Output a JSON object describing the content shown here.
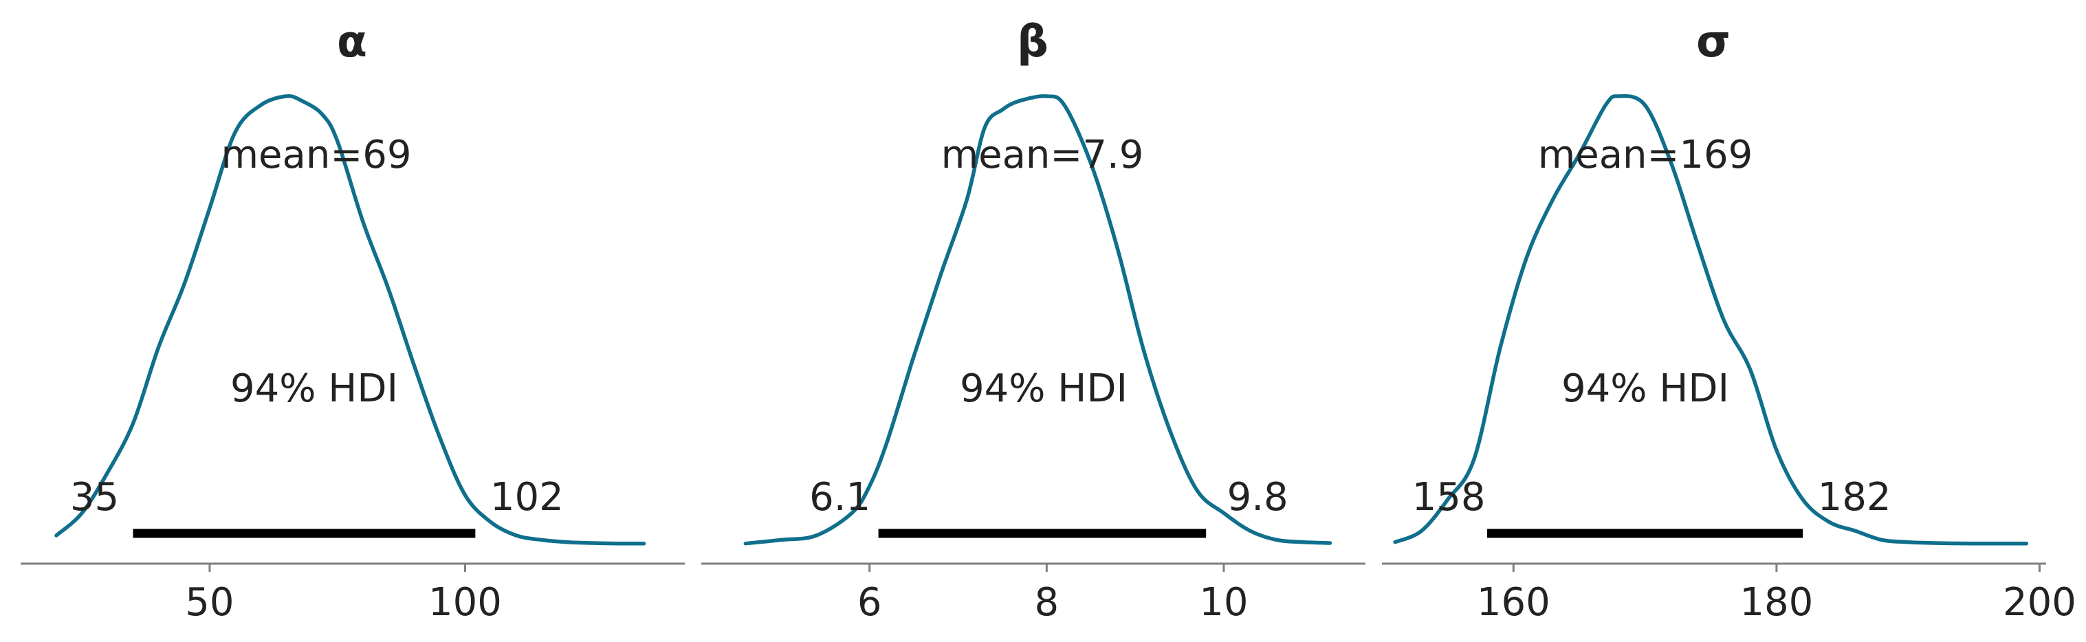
{
  "figure": {
    "curve_color": "#0f6f8c",
    "hdi_label": "94% HDI"
  },
  "chart_data": [
    {
      "type": "line",
      "title": "α",
      "mean_label": "mean=69",
      "hdi_low_label": "35",
      "hdi_high_label": "102",
      "hdi": [
        35,
        102
      ],
      "xlim": [
        13,
        143
      ],
      "ticks": [
        50,
        100
      ],
      "tick_labels": [
        "50",
        "100"
      ],
      "x": [
        20,
        25,
        30,
        35,
        40,
        45,
        50,
        55,
        60,
        65,
        68,
        72,
        75,
        80,
        85,
        90,
        95,
        100,
        105,
        110,
        115,
        120,
        125,
        130,
        135
      ],
      "density": [
        0.02,
        0.07,
        0.16,
        0.27,
        0.44,
        0.58,
        0.75,
        0.92,
        0.98,
        1.0,
        0.99,
        0.96,
        0.9,
        0.72,
        0.57,
        0.4,
        0.24,
        0.11,
        0.05,
        0.02,
        0.01,
        0.005,
        0.003,
        0.002,
        0.002
      ]
    },
    {
      "type": "line",
      "title": "β",
      "mean_label": "mean=7.9",
      "hdi_low_label": "6.1",
      "hdi_high_label": "9.8",
      "hdi": [
        6.1,
        9.8
      ],
      "xlim": [
        4.1,
        11.6
      ],
      "ticks": [
        6,
        8,
        10
      ],
      "tick_labels": [
        "6",
        "8",
        "10"
      ],
      "x": [
        4.6,
        5.0,
        5.4,
        5.8,
        6.0,
        6.2,
        6.5,
        6.8,
        7.1,
        7.3,
        7.5,
        7.7,
        8.0,
        8.2,
        8.5,
        8.8,
        9.1,
        9.4,
        9.7,
        10.0,
        10.3,
        10.6,
        10.9,
        11.2
      ],
      "density": [
        0.002,
        0.01,
        0.02,
        0.07,
        0.13,
        0.23,
        0.42,
        0.6,
        0.77,
        0.93,
        0.97,
        0.99,
        1.0,
        0.98,
        0.85,
        0.66,
        0.43,
        0.25,
        0.12,
        0.07,
        0.03,
        0.01,
        0.005,
        0.003
      ]
    },
    {
      "type": "line",
      "title": "σ",
      "mean_label": "mean=169",
      "hdi_low_label": "158",
      "hdi_high_label": "182",
      "hdi": [
        158,
        182
      ],
      "xlim": [
        150,
        200.5
      ],
      "ticks": [
        160,
        180,
        200
      ],
      "tick_labels": [
        "160",
        "180",
        "200"
      ],
      "x": [
        151,
        153,
        155,
        157,
        159,
        161,
        163,
        165,
        167,
        168,
        170,
        172,
        174,
        176,
        178,
        180,
        182,
        184,
        186,
        188,
        190,
        192,
        195,
        199
      ],
      "density": [
        0.005,
        0.03,
        0.1,
        0.19,
        0.44,
        0.64,
        0.77,
        0.87,
        0.98,
        1.0,
        0.98,
        0.85,
        0.67,
        0.5,
        0.39,
        0.21,
        0.1,
        0.05,
        0.03,
        0.01,
        0.005,
        0.003,
        0.002,
        0.002
      ]
    }
  ]
}
